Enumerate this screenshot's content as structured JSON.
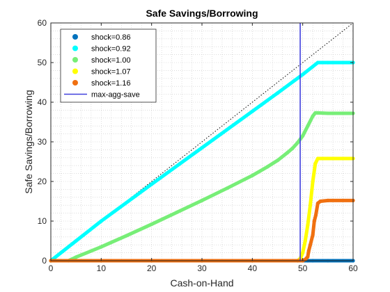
{
  "chart_data": {
    "type": "scatter",
    "title": "Safe Savings/Borrowing",
    "xlabel": "Cash-on-Hand",
    "ylabel": "Safe Savings/Borrowing",
    "xlim": [
      0,
      60
    ],
    "ylim": [
      0,
      60
    ],
    "xticks": [
      "0",
      "10",
      "20",
      "30",
      "40",
      "50",
      "60"
    ],
    "yticks": [
      "0",
      "10",
      "20",
      "30",
      "40",
      "50",
      "60"
    ],
    "grid": "dotted-minor",
    "legend_position": "top-left",
    "reference_line": {
      "style": "dotted",
      "color": "#000000",
      "x": [
        0,
        60
      ],
      "y": [
        0,
        60
      ]
    },
    "series": [
      {
        "name": "shock=0.86",
        "color": "#0072BD",
        "x": [
          0,
          10,
          20,
          30,
          40,
          49,
          50,
          51,
          52,
          55,
          60
        ],
        "y": [
          0,
          0,
          0,
          0,
          0,
          0,
          0,
          0,
          0,
          0,
          0
        ]
      },
      {
        "name": "shock=0.92",
        "color": "#00FFFF",
        "x": [
          0,
          5,
          10,
          20,
          30,
          40,
          45,
          50,
          52,
          53,
          55,
          60
        ],
        "y": [
          0,
          5,
          10,
          19.3,
          28.5,
          37.7,
          42.3,
          47,
          49,
          50,
          50,
          50
        ]
      },
      {
        "name": "shock=1.00",
        "color": "#77EE77",
        "x": [
          3.5,
          5,
          10,
          15,
          20,
          25,
          30,
          35,
          40,
          43,
          45,
          47,
          48,
          49,
          50,
          51,
          52,
          52.5,
          53,
          55,
          60
        ],
        "y": [
          0,
          0.9,
          3.5,
          6.3,
          9.2,
          12.2,
          15.2,
          18.3,
          21.5,
          23.7,
          25.3,
          27.3,
          28.4,
          29.8,
          31.5,
          34,
          36.5,
          37.3,
          37.3,
          37.2,
          37.2
        ]
      },
      {
        "name": "shock=1.07",
        "color": "#FFFF00",
        "x": [
          0,
          10,
          20,
          30,
          40,
          49,
          49.5,
          50,
          50.5,
          51,
          51.5,
          52,
          52.5,
          53,
          55,
          60
        ],
        "y": [
          0,
          0,
          0,
          0,
          0,
          0,
          0.5,
          2,
          5,
          9,
          14,
          20,
          24.5,
          25.8,
          25.8,
          25.8
        ]
      },
      {
        "name": "shock=1.16",
        "color": "#F07010",
        "x": [
          0,
          10,
          20,
          30,
          40,
          50,
          50.5,
          51,
          51.2,
          51.5,
          52,
          52.3,
          52.6,
          53,
          53.5,
          55,
          60
        ],
        "y": [
          0,
          0,
          0,
          0,
          0,
          0,
          0.3,
          1,
          2.5,
          4,
          6.5,
          10,
          11.5,
          14.5,
          15,
          15.2,
          15.2
        ]
      }
    ],
    "vertical_line": {
      "name": "max-agg-save",
      "color": "#4040DD",
      "x": 49.5
    }
  }
}
